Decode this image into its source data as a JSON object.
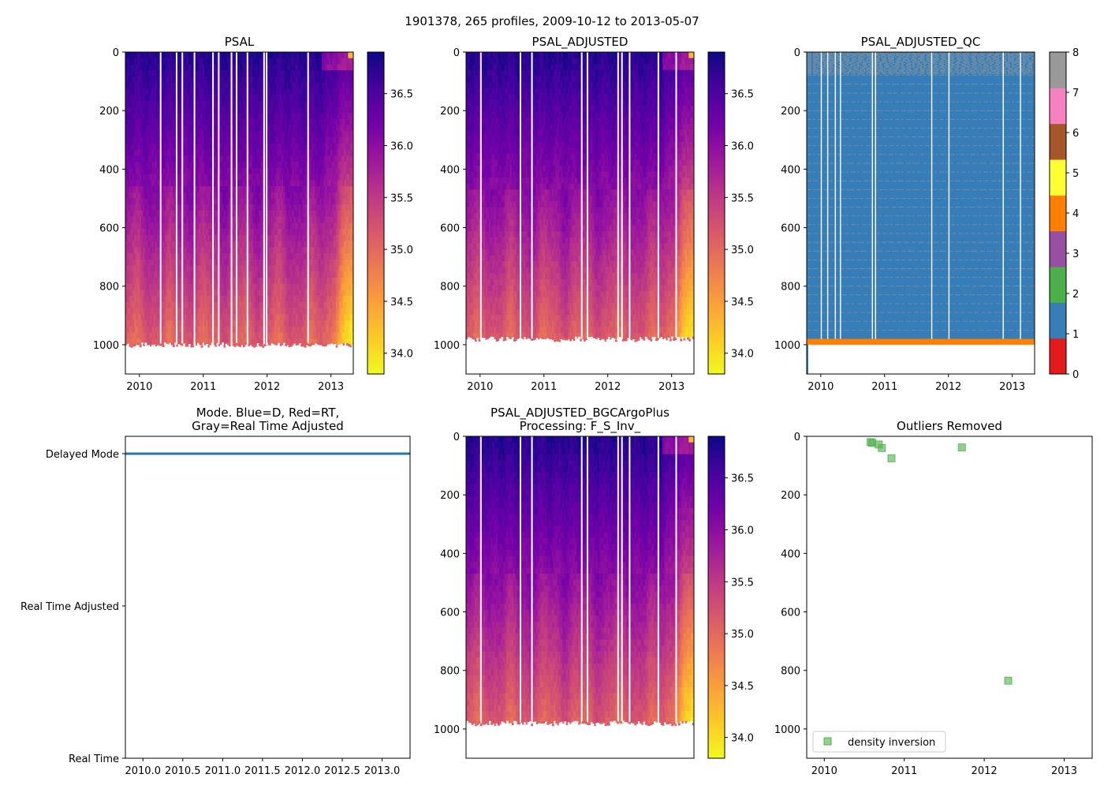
{
  "figure": {
    "suptitle": "1901378, 265 profiles, 2009-10-12 to 2013-05-07"
  },
  "colors": {
    "plasma_stops": [
      "#0d0887",
      "#46039f",
      "#7201a8",
      "#9c179e",
      "#bd3786",
      "#d8576b",
      "#ed7953",
      "#fb9f3a",
      "#fdca26",
      "#f0f921"
    ],
    "qc_colors": [
      "#e41a1c",
      "#377eb8",
      "#4daf4a",
      "#984ea3",
      "#ff7f00",
      "#ffff33",
      "#a65628",
      "#f781bf",
      "#999999"
    ],
    "mode_line": "#1f77b4",
    "outlier_marker": "#4daf4a"
  },
  "chart_data": [
    {
      "id": "psal",
      "type": "heatmap",
      "title": "PSAL",
      "xlim": [
        2009.78,
        2013.35
      ],
      "ylim": [
        1100,
        0
      ],
      "xticks": [
        2010,
        2011,
        2012,
        2013
      ],
      "yticks": [
        0,
        200,
        400,
        600,
        800,
        1000
      ],
      "max_depth": 1000,
      "colorbar": {
        "min": 33.8,
        "max": 36.9,
        "ticks": [
          "34.0",
          "34.5",
          "35.0",
          "35.5",
          "36.0",
          "36.5"
        ],
        "tick_values": [
          34.0,
          34.5,
          35.0,
          35.5,
          36.0,
          36.5
        ]
      },
      "gap_years": [
        2010.32,
        2010.57,
        2010.66,
        2010.85,
        2011.14,
        2011.23,
        2011.43,
        2011.51,
        2011.68,
        2011.94,
        2011.98,
        2012.63
      ]
    },
    {
      "id": "psal_adjusted",
      "type": "heatmap",
      "title": "PSAL_ADJUSTED",
      "xlim": [
        2009.78,
        2013.35
      ],
      "ylim": [
        1100,
        0
      ],
      "xticks": [
        2010,
        2011,
        2012,
        2013
      ],
      "yticks": [
        0,
        200,
        400,
        600,
        800,
        1000
      ],
      "max_depth": 980,
      "colorbar": {
        "min": 33.8,
        "max": 36.9,
        "ticks": [
          "34.0",
          "34.5",
          "35.0",
          "35.5",
          "36.0",
          "36.5"
        ],
        "tick_values": [
          34.0,
          34.5,
          35.0,
          35.5,
          36.0,
          36.5
        ]
      },
      "gap_years": [
        2010.0,
        2010.62,
        2010.8,
        2011.58,
        2011.67,
        2012.15,
        2012.21,
        2012.33,
        2012.78,
        2013.06
      ]
    },
    {
      "id": "psal_adjusted_qc",
      "type": "heatmap",
      "title": "PSAL_ADJUSTED_QC",
      "xlim": [
        2009.78,
        2013.35
      ],
      "ylim": [
        1100,
        0
      ],
      "xticks": [
        2010,
        2011,
        2012,
        2013
      ],
      "yticks": [
        0,
        200,
        400,
        600,
        800,
        1000
      ],
      "qc_values": {
        "main": 1,
        "bottom_band": 4,
        "noise": 8
      },
      "bottom_band_depth": [
        980,
        1000
      ],
      "colorbar": {
        "min": 0,
        "max": 8,
        "ticks": [
          "0",
          "1",
          "2",
          "3",
          "4",
          "5",
          "6",
          "7",
          "8"
        ]
      },
      "gap_years": [
        2010.0,
        2010.1,
        2010.22,
        2010.3,
        2010.8,
        2010.85,
        2011.73,
        2012.0,
        2012.85,
        2013.12
      ]
    },
    {
      "id": "mode",
      "type": "line",
      "title": "Mode. Blue=D, Red=RT,\nGray=Real Time Adjusted",
      "title_lines": [
        "Mode. Blue=D, Red=RT,",
        "Gray=Real Time Adjusted"
      ],
      "xlim": [
        2009.78,
        2013.35
      ],
      "xticks": [
        2010.0,
        2010.5,
        2011.0,
        2011.5,
        2012.0,
        2012.5,
        2013.0
      ],
      "xtick_labels": [
        "2010.0",
        "2010.5",
        "2011.0",
        "2011.5",
        "2012.0",
        "2012.5",
        "2013.0"
      ],
      "yticks": [
        "Delayed Mode",
        "Real Time Adjusted",
        "Real Time"
      ],
      "series": [
        {
          "name": "mode",
          "x": [
            2009.78,
            2013.35
          ],
          "y": [
            "Delayed Mode",
            "Delayed Mode"
          ]
        }
      ]
    },
    {
      "id": "psal_adjusted_bgc",
      "type": "heatmap",
      "title": "PSAL_ADJUSTED_BGCArgoPlus\nProcessing: F_S_Inv_",
      "title_lines": [
        "PSAL_ADJUSTED_BGCArgoPlus",
        "Processing: F_S_Inv_"
      ],
      "xlim": [
        2009.78,
        2013.35
      ],
      "ylim": [
        1100,
        0
      ],
      "xticks": [],
      "yticks": [
        0,
        200,
        400,
        600,
        800,
        1000
      ],
      "max_depth": 980,
      "colorbar": {
        "min": 33.8,
        "max": 36.9,
        "ticks": [
          "34.0",
          "34.5",
          "35.0",
          "35.5",
          "36.0",
          "36.5"
        ],
        "tick_values": [
          34.0,
          34.5,
          35.0,
          35.5,
          36.0,
          36.5
        ]
      },
      "gap_years": [
        2010.0,
        2010.62,
        2010.8,
        2011.58,
        2011.67,
        2012.15,
        2012.21,
        2012.33,
        2012.78,
        2013.06
      ]
    },
    {
      "id": "outliers",
      "type": "scatter",
      "title": "Outliers Removed",
      "xlim": [
        2009.78,
        2013.35
      ],
      "ylim": [
        1100,
        0
      ],
      "xticks": [
        2010,
        2011,
        2012,
        2013
      ],
      "yticks": [
        0,
        200,
        400,
        600,
        800,
        1000
      ],
      "series": [
        {
          "name": "density inversion",
          "x": [
            2010.58,
            2010.6,
            2010.68,
            2010.72,
            2010.84,
            2011.72,
            2012.3
          ],
          "y": [
            20,
            22,
            28,
            40,
            75,
            38,
            835
          ]
        }
      ],
      "legend": {
        "label": "density inversion",
        "loc": "lower-left"
      }
    }
  ]
}
